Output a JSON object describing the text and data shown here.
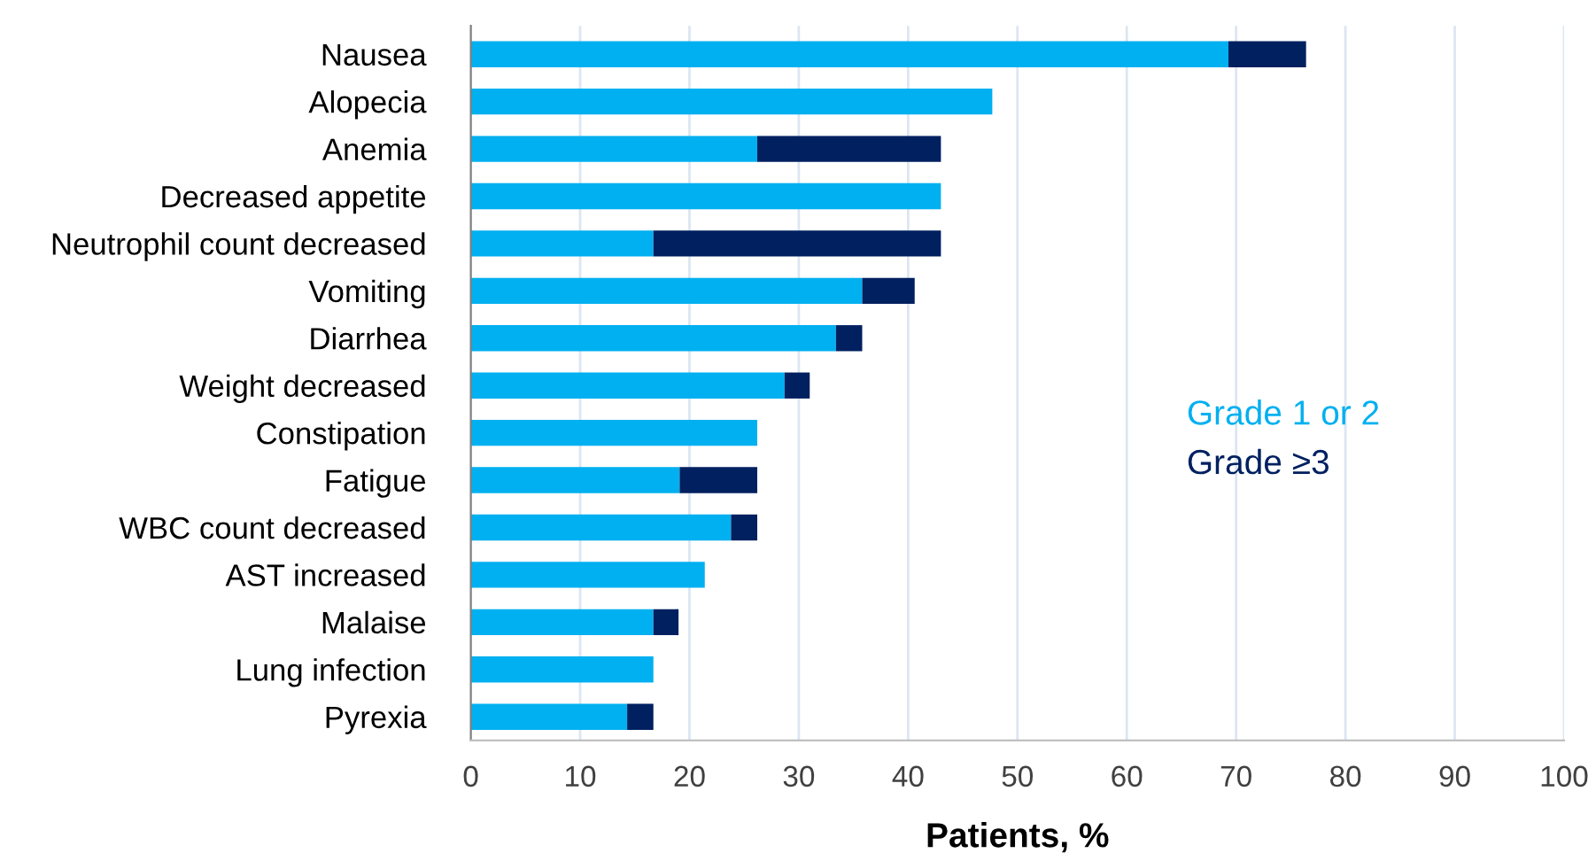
{
  "chart_data": {
    "type": "bar",
    "orientation": "horizontal",
    "stacked": true,
    "xlabel": "Patients, %",
    "categories": [
      "Nausea",
      "Alopecia",
      "Anemia",
      "Decreased appetite",
      "Neutrophil count decreased",
      "Vomiting",
      "Diarrhea",
      "Weight decreased",
      "Constipation",
      "Fatigue",
      "WBC count decreased",
      "AST increased",
      "Malaise",
      "Lung infection",
      "Pyrexia"
    ],
    "series": [
      {
        "name": "Grade 1 or 2",
        "color": "#00b0f0",
        "values": [
          69.3,
          47.7,
          26.2,
          43.0,
          16.7,
          35.8,
          33.4,
          28.7,
          26.2,
          19.1,
          23.8,
          21.4,
          16.7,
          16.7,
          14.3
        ]
      },
      {
        "name": "Grade ≥3",
        "color": "#002060",
        "values": [
          7.1,
          null,
          16.8,
          null,
          26.3,
          4.8,
          2.4,
          2.3,
          null,
          7.1,
          2.4,
          null,
          2.3,
          null,
          2.4
        ]
      }
    ],
    "xlim": [
      0,
      100
    ],
    "xticks": [
      0,
      10,
      20,
      30,
      40,
      50,
      60,
      70,
      80,
      90,
      100
    ],
    "grid": "x",
    "legend": "right"
  }
}
